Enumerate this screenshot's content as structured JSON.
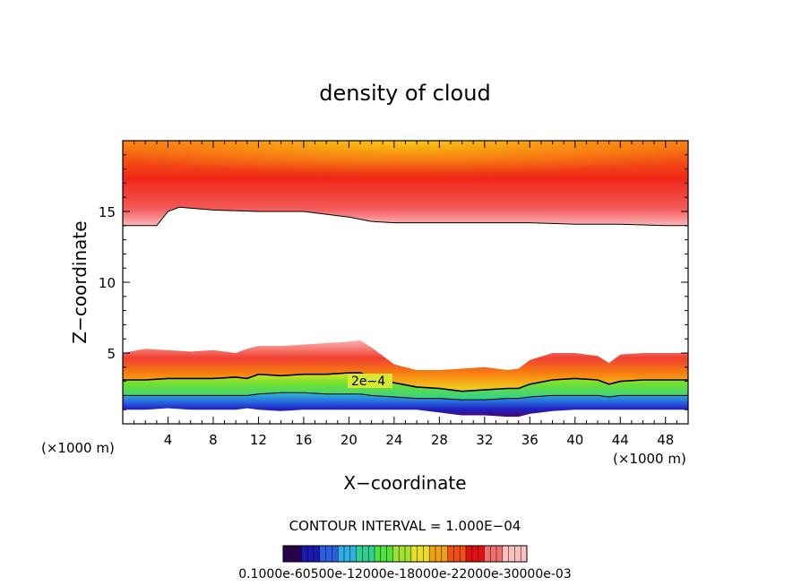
{
  "chart_data": {
    "type": "contour",
    "title": "density of cloud",
    "xlabel": "X−coordinate",
    "ylabel": "Z−coordinate",
    "x_unit": "(×1000 m)",
    "y_unit": "(×1000 m)",
    "xlim": [
      0,
      50
    ],
    "ylim": [
      0,
      20
    ],
    "x_ticks": [
      4,
      8,
      12,
      16,
      20,
      24,
      28,
      32,
      36,
      40,
      44,
      48
    ],
    "y_ticks": [
      5,
      10,
      15
    ],
    "contour_interval_text": "CONTOUR INTERVAL = 1.000E−04",
    "contour_label": "2e−4",
    "colorbar_labels_text": "0.1000e-60500e-12000e-18000e-22000e-30000e-03",
    "colorbar_colors": [
      "#2b0050",
      "#1a1ab0",
      "#2a60e0",
      "#30b0e0",
      "#30d090",
      "#50e040",
      "#a0e030",
      "#e8e020",
      "#f0a010",
      "#f05010",
      "#e01010",
      "#f07070",
      "#fcc0c0"
    ],
    "upper_layer": {
      "x": [
        0,
        3,
        4,
        5,
        8,
        12,
        16,
        20,
        22,
        24,
        30,
        36,
        40,
        44,
        48,
        50
      ],
      "base": [
        14.0,
        14.0,
        15.0,
        15.3,
        15.1,
        15.0,
        15.0,
        14.6,
        14.3,
        14.2,
        14.2,
        14.2,
        14.1,
        14.1,
        14.0,
        14.0
      ],
      "top": 20
    },
    "lower_layer": {
      "x": [
        0,
        2,
        4,
        6,
        8,
        10,
        11,
        12,
        14,
        16,
        18,
        20,
        21,
        22,
        24,
        26,
        28,
        30,
        32,
        34,
        35,
        36,
        38,
        40,
        42,
        43,
        44,
        46,
        48,
        50
      ],
      "top": [
        5.0,
        5.3,
        5.2,
        5.1,
        5.2,
        5.0,
        5.3,
        5.5,
        5.5,
        5.6,
        5.7,
        5.8,
        5.9,
        5.4,
        4.2,
        3.8,
        3.8,
        3.9,
        4.0,
        3.8,
        3.9,
        4.5,
        5.0,
        5.0,
        4.8,
        4.3,
        4.9,
        5.0,
        5.0,
        5.0
      ],
      "line_2e4": [
        3.1,
        3.1,
        3.2,
        3.2,
        3.2,
        3.3,
        3.2,
        3.5,
        3.4,
        3.5,
        3.5,
        3.6,
        3.6,
        3.3,
        2.9,
        2.6,
        2.5,
        2.3,
        2.4,
        2.5,
        2.5,
        2.8,
        3.1,
        3.2,
        3.1,
        2.8,
        3.0,
        3.1,
        3.1,
        3.1
      ],
      "line_1e4": [
        2.0,
        2.0,
        2.0,
        2.0,
        2.0,
        2.0,
        2.0,
        2.1,
        2.2,
        2.2,
        2.1,
        2.1,
        2.1,
        2.0,
        1.9,
        1.8,
        1.8,
        1.7,
        1.7,
        1.8,
        1.8,
        1.9,
        2.0,
        2.0,
        2.0,
        1.9,
        2.0,
        2.0,
        2.0,
        2.0
      ],
      "bottom": [
        1.0,
        1.0,
        1.1,
        1.0,
        1.0,
        1.0,
        1.1,
        1.0,
        0.9,
        1.0,
        1.0,
        1.0,
        1.0,
        1.0,
        1.0,
        1.0,
        0.8,
        0.6,
        0.6,
        0.5,
        0.5,
        0.7,
        0.9,
        1.0,
        1.0,
        1.0,
        1.0,
        1.0,
        1.0,
        1.0
      ]
    }
  }
}
